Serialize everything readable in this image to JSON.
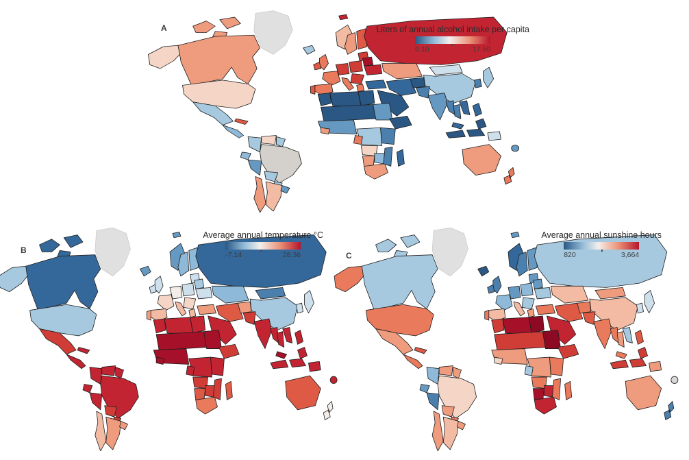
{
  "page": {
    "background": "#ffffff"
  },
  "colors": {
    "border": "#1f1f1f",
    "no_data": "#e0e0e0",
    "no_data_border": "#cccccc",
    "legend_title": "#2b2b2b",
    "legend_labels": "#3a3a3a",
    "panel_label": "#3d3d3d",
    "scale_stops": [
      "#2a5783 0%",
      "#93bbd8 25%",
      "#f3efec 46%",
      "#ec9579 72%",
      "#b5152b 100%"
    ]
  },
  "chart_data": [
    {
      "type": "choropleth",
      "subtype": "world-map",
      "panel_label": "A",
      "title": "Liters of annual alcohol intake per capita",
      "legend_position": "top-right",
      "scale": {
        "min": 0.1,
        "max": 17.5,
        "min_label": "0.10",
        "max_label": "17.50",
        "colormap": "blue-white-red diverging",
        "tick_fraction": 0.48
      },
      "region_colors": {
        "greenland": "#e0e0e0",
        "arctic1": "#ef9b7d",
        "arctic2": "#ef9b7d",
        "arctic3": "#ef9b7d",
        "alaska": "#f5d6c6",
        "canada": "#ef9b7d",
        "usa": "#f5d6c6",
        "mexico": "#a7c9e0",
        "central_america": "#8fb9d8",
        "cuba": "#de5a45",
        "colombia": "#a7c9e0",
        "venezuela": "#f5d6c6",
        "guyanas": "#a7c9e0",
        "ecuador": "#8fb9d8",
        "peru": "#6699c2",
        "brazil": "#d4d0cc",
        "bolivia": "#a7c9e0",
        "paraguay": "#a7c9e0",
        "chile": "#ef9b7d",
        "argentina": "#f3bba4",
        "uruguay": "#6699c2",
        "iceland": "#a7c9e0",
        "svalbard": "#c22432",
        "uk": "#e97a5c",
        "ireland": "#de5a45",
        "norway": "#f3bba4",
        "sweden": "#ef9b7d",
        "finland": "#de5a45",
        "baltics": "#d03c36",
        "germany": "#d03c36",
        "france": "#e97a5c",
        "spain": "#e97a5c",
        "portugal": "#de5a45",
        "italy": "#e97a5c",
        "central_europe": "#d03c36",
        "belarus": "#a61129",
        "ukraine": "#c22432",
        "balkans": "#d03c36",
        "greece": "#e97a5c",
        "turkey": "#35689a",
        "russia": "#c22432",
        "kazakhstan": "#ef9b7d",
        "mongolia": "#cfe0ed",
        "china": "#a7c9e0",
        "japan": "#a7c9e0",
        "korea": "#4a7fae",
        "iraq_iran": "#35689a",
        "middle_east": "#2a5783",
        "afghanistan": "#2a5783",
        "pakistan": "#4a7fae",
        "india": "#6699c2",
        "myanmar": "#4a7fae",
        "thailand": "#4a7fae",
        "vietnam": "#35689a",
        "malaysia": "#35689a",
        "indonesia": "#2a5783",
        "philippines": "#35689a",
        "png": "#cfe0ed",
        "morocco": "#2a5783",
        "algeria_libya": "#2a5783",
        "egypt": "#2a5783",
        "sahel": "#2a5783",
        "sudan": "#6699c2",
        "west_africa": "#6699c2",
        "guinea_small": "#ef9b7d",
        "central_africa": "#a7c9e0",
        "gabon": "#e97a5c",
        "horn": "#2a5783",
        "east_africa": "#4a7fae",
        "angola": "#f5d6c6",
        "namibia": "#ef9b7d",
        "botswana_zimbabwe": "#8fb9d8",
        "south_africa": "#ef9b7d",
        "mozambique": "#4a7fae",
        "madagascar": "#35689a",
        "australia": "#ef9b7d",
        "new_zealand": "#e97a5c",
        "fiji_dot": "#6699c2"
      }
    },
    {
      "type": "choropleth",
      "subtype": "world-map",
      "panel_label": "B",
      "title": "Average annual temperature °C",
      "legend_position": "top-right",
      "scale": {
        "min": -7.14,
        "max": 28.36,
        "min_label": "-7.14",
        "max_label": "28.36",
        "colormap": "blue-white-red diverging",
        "tick_fraction": 0.46
      },
      "region_colors": {
        "greenland": "#e0e0e0",
        "arctic1": "#35689a",
        "arctic2": "#35689a",
        "arctic3": "#35689a",
        "alaska": "#a7c9e0",
        "canada": "#35689a",
        "usa": "#a7c9e0",
        "mexico": "#d03c36",
        "central_america": "#c22432",
        "cuba": "#c22432",
        "colombia": "#c22432",
        "venezuela": "#c22432",
        "guyanas": "#c22432",
        "ecuador": "#c22432",
        "peru": "#c22432",
        "brazil": "#c22432",
        "bolivia": "#d03c36",
        "paraguay": "#d03c36",
        "chile": "#f3bba4",
        "argentina": "#ef9b7d",
        "uruguay": "#ef9b7d",
        "iceland": "#6699c2",
        "svalbard": "#6699c2",
        "uk": "#cfe0ed",
        "ireland": "#cfe0ed",
        "norway": "#6699c2",
        "sweden": "#8fb9d8",
        "finland": "#8fb9d8",
        "baltics": "#cfe0ed",
        "germany": "#f2ede8",
        "france": "#f5d6c6",
        "spain": "#f3bba4",
        "portugal": "#ef9b7d",
        "italy": "#f3bba4",
        "central_europe": "#cfe0ed",
        "belarus": "#a7c9e0",
        "ukraine": "#cfe0ed",
        "balkans": "#f5d6c6",
        "greece": "#f3bba4",
        "turkey": "#ef9b7d",
        "russia": "#35689a",
        "kazakhstan": "#8fb9d8",
        "mongolia": "#4a7fae",
        "china": "#a7c9e0",
        "japan": "#cfe0ed",
        "korea": "#cfe0ed",
        "iraq_iran": "#de5a45",
        "middle_east": "#c22432",
        "afghanistan": "#ef9b7d",
        "pakistan": "#d03c36",
        "india": "#c22432",
        "myanmar": "#c22432",
        "thailand": "#c22432",
        "vietnam": "#c22432",
        "malaysia": "#a61129",
        "indonesia": "#c22432",
        "philippines": "#c22432",
        "png": "#c22432",
        "morocco": "#c22432",
        "algeria_libya": "#c22432",
        "egypt": "#c22432",
        "sahel": "#a61129",
        "sudan": "#a61129",
        "west_africa": "#a61129",
        "guinea_small": "#a61129",
        "central_africa": "#c22432",
        "gabon": "#c22432",
        "horn": "#d03c36",
        "east_africa": "#c22432",
        "angola": "#d03c36",
        "namibia": "#de5a45",
        "botswana_zimbabwe": "#d03c36",
        "south_africa": "#e97a5c",
        "mozambique": "#d03c36",
        "madagascar": "#de5a45",
        "australia": "#de5a45",
        "new_zealand": "#f2ede8",
        "fiji_dot": "#c22432"
      }
    },
    {
      "type": "choropleth",
      "subtype": "world-map",
      "panel_label": "C",
      "title": "Average annual sunshine hours",
      "legend_position": "top-right",
      "scale": {
        "min": 820,
        "max": 3664,
        "min_label": "820",
        "max_label": "3,664",
        "colormap": "blue-white-red diverging",
        "tick_fraction": 0.5
      },
      "region_colors": {
        "greenland": "#e0e0e0",
        "arctic1": "#a7c9e0",
        "arctic2": "#a7c9e0",
        "arctic3": "#a7c9e0",
        "alaska": "#e97a5c",
        "canada": "#a7c9e0",
        "usa": "#e97a5c",
        "mexico": "#ef9b7d",
        "central_america": "#e97a5c",
        "cuba": "#de5a45",
        "colombia": "#8fb9d8",
        "venezuela": "#ef9b7d",
        "guyanas": "#ef9b7d",
        "ecuador": "#6699c2",
        "peru": "#4a7fae",
        "brazil": "#f5d6c6",
        "bolivia": "#ef9b7d",
        "paraguay": "#e97a5c",
        "chile": "#ef9b7d",
        "argentina": "#f3bba4",
        "uruguay": "#ef9b7d",
        "iceland": "#2a5783",
        "svalbard": "#6699c2",
        "uk": "#4a7fae",
        "ireland": "#4a7fae",
        "norway": "#35689a",
        "sweden": "#4a7fae",
        "finland": "#6699c2",
        "baltics": "#6699c2",
        "germany": "#6699c2",
        "france": "#8fb9d8",
        "spain": "#f3bba4",
        "portugal": "#e97a5c",
        "italy": "#f3bba4",
        "central_europe": "#8fb9d8",
        "belarus": "#6699c2",
        "ukraine": "#a7c9e0",
        "balkans": "#a7c9e0",
        "greece": "#ef9b7d",
        "turkey": "#e97a5c",
        "russia": "#a7c9e0",
        "kazakhstan": "#f3bba4",
        "mongolia": "#ef9b7d",
        "china": "#f3bba4",
        "japan": "#cfe0ed",
        "korea": "#cfe0ed",
        "iraq_iran": "#de5a45",
        "middle_east": "#c22432",
        "afghanistan": "#e97a5c",
        "pakistan": "#de5a45",
        "india": "#e97a5c",
        "myanmar": "#e97a5c",
        "thailand": "#ef9b7d",
        "vietnam": "#a7c9e0",
        "malaysia": "#e97a5c",
        "indonesia": "#d03c36",
        "philippines": "#de5a45",
        "png": "#ef9b7d",
        "morocco": "#d03c36",
        "algeria_libya": "#a61129",
        "egypt": "#8c0a23",
        "sahel": "#d03c36",
        "sudan": "#8c0a23",
        "west_africa": "#ef9b7d",
        "guinea_small": "#f5d6c6",
        "central_africa": "#ef9b7d",
        "gabon": "#a7c9e0",
        "horn": "#d03c36",
        "east_africa": "#e97a5c",
        "angola": "#e97a5c",
        "namibia": "#a61129",
        "botswana_zimbabwe": "#c22432",
        "south_africa": "#c22432",
        "mozambique": "#e97a5c",
        "madagascar": "#e97a5c",
        "australia": "#ef9b7d",
        "new_zealand": "#4a7fae",
        "fiji_dot": "#d8d8d8"
      }
    }
  ]
}
